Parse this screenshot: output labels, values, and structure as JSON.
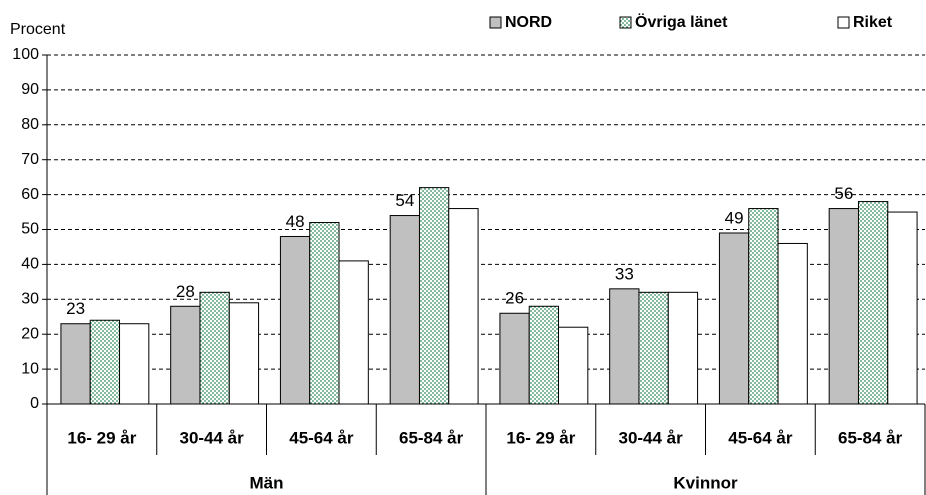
{
  "chart_data": {
    "type": "bar",
    "ylabel": "Procent",
    "categories": [
      "16- 29 år",
      "30-44 år",
      "45-64 år",
      "65-84 år",
      "16- 29 år",
      "30-44 år",
      "45-64 år",
      "65-84 år"
    ],
    "groups": [
      "Män",
      "Kvinnor"
    ],
    "series": [
      {
        "name": "NORD",
        "color": "#c0c0c0",
        "values": [
          23,
          28,
          48,
          54,
          26,
          33,
          49,
          56
        ],
        "labels": true
      },
      {
        "name": "Övriga länet",
        "color": "#2e8b57",
        "pattern": "dots",
        "values": [
          24,
          32,
          52,
          62,
          28,
          32,
          56,
          58
        ]
      },
      {
        "name": "Riket",
        "color": "#ffffff",
        "values": [
          23,
          29,
          41,
          56,
          22,
          32,
          46,
          55
        ]
      }
    ],
    "ylim": [
      0,
      100
    ],
    "yticks": [
      0,
      10,
      20,
      30,
      40,
      50,
      60,
      70,
      80,
      90,
      100
    ],
    "grid": true,
    "legend": "top-right"
  }
}
